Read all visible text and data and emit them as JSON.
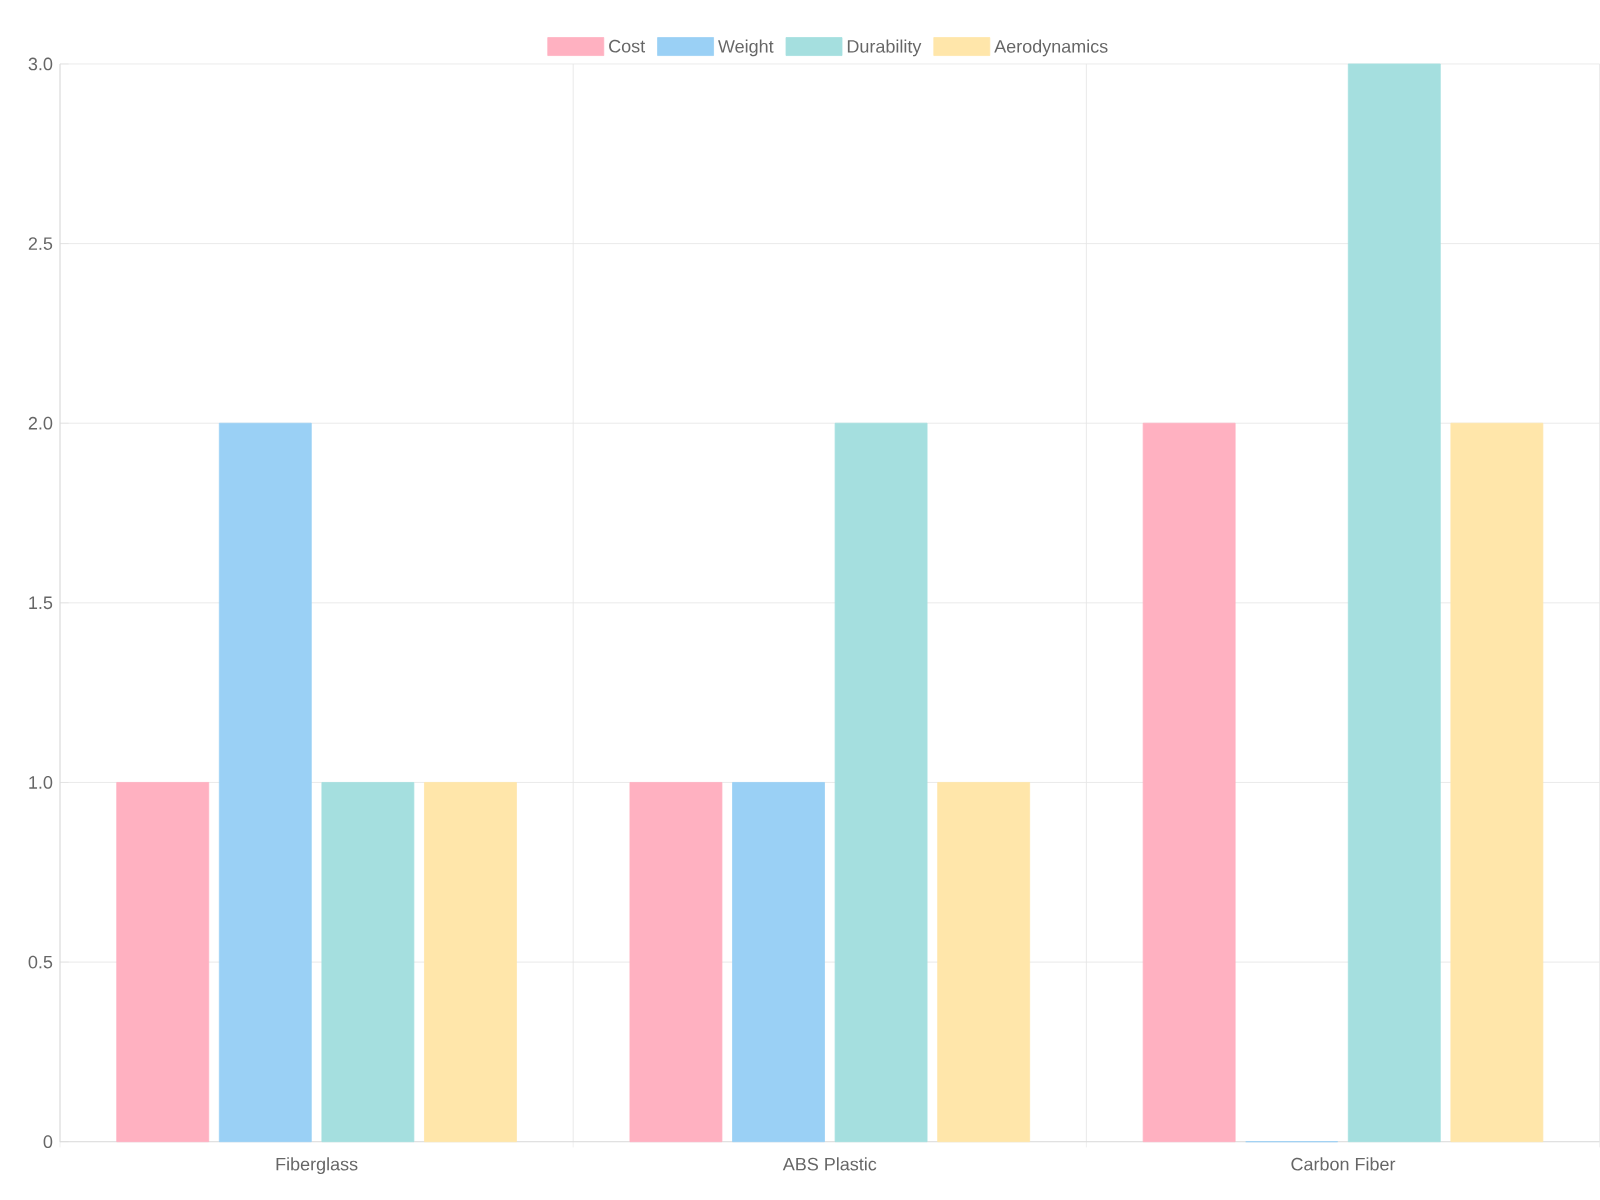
{
  "chart_data": {
    "type": "bar",
    "categories": [
      "Fiberglass",
      "ABS Plastic",
      "Carbon Fiber"
    ],
    "series": [
      {
        "name": "Cost",
        "color": "#ffb1c1",
        "values": [
          1,
          1,
          2
        ]
      },
      {
        "name": "Weight",
        "color": "#9ad0f5",
        "values": [
          2,
          1,
          0
        ]
      },
      {
        "name": "Durability",
        "color": "#a5dfdf",
        "values": [
          1,
          2,
          3
        ]
      },
      {
        "name": "Aerodynamics",
        "color": "#ffe6aa",
        "values": [
          1,
          1,
          2
        ]
      }
    ],
    "ylim": [
      0,
      3
    ],
    "yticks": [
      0,
      0.5,
      {
        "value": 1,
        "label": "1.0"
      },
      1.5,
      {
        "value": 2,
        "label": "2.0"
      },
      2.5,
      {
        "value": 3,
        "label": "3.0"
      }
    ],
    "grid": true,
    "legend": "top"
  }
}
